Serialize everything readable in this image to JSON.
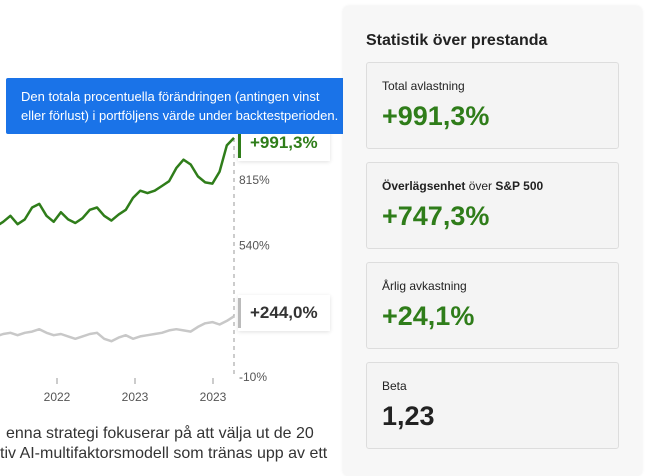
{
  "tooltip": {
    "line1": "Den totala procentuella förändringen (antingen vinst",
    "line2": "eller förlust) i portföljens värde under backtestperioden."
  },
  "chart_data": {
    "type": "line",
    "yticks": [
      815,
      540,
      -10
    ],
    "ytick_labels": [
      "815%",
      "540%",
      "-10%"
    ],
    "xticks": [
      "2022",
      "2023",
      "2023"
    ],
    "ylim": [
      -10,
      1000
    ],
    "series": [
      {
        "values": [
          620,
          640,
          665,
          630,
          650,
          700,
          715,
          665,
          640,
          680,
          650,
          635,
          655,
          690,
          700,
          665,
          645,
          670,
          690,
          740,
          770,
          760,
          770,
          790,
          810,
          865,
          900,
          880,
          830,
          805,
          800,
          850,
          960,
          991.3
        ],
        "color": "#2f7d1a"
      },
      {
        "values": [
          160,
          170,
          175,
          165,
          175,
          180,
          190,
          175,
          165,
          170,
          160,
          150,
          160,
          170,
          175,
          150,
          140,
          155,
          165,
          150,
          160,
          165,
          170,
          175,
          185,
          190,
          185,
          180,
          200,
          215,
          220,
          210,
          225,
          244.0
        ],
        "color": "#c8c8c8"
      }
    ],
    "end_labels": [
      "+991,3%",
      "+244,0%"
    ]
  },
  "description": {
    "line1": "enna strategi fokuserar på att välja ut de 20",
    "line2": "tiv AI-multifaktorsmodell som tränas upp av ett"
  },
  "stats": {
    "title": "Statistik över prestanda",
    "cards": [
      {
        "label_bold": "",
        "label": "Total avlastning",
        "value": "+991,3%"
      },
      {
        "label_bold": "Överlägsenhet",
        "label": " över ",
        "label_bold2": "S&P 500",
        "value": "+747,3%"
      },
      {
        "label_bold": "",
        "label": "Årlig avkastning",
        "value": "+24,1%"
      },
      {
        "label_bold": "",
        "label": "Beta",
        "value": "1,23"
      }
    ]
  }
}
